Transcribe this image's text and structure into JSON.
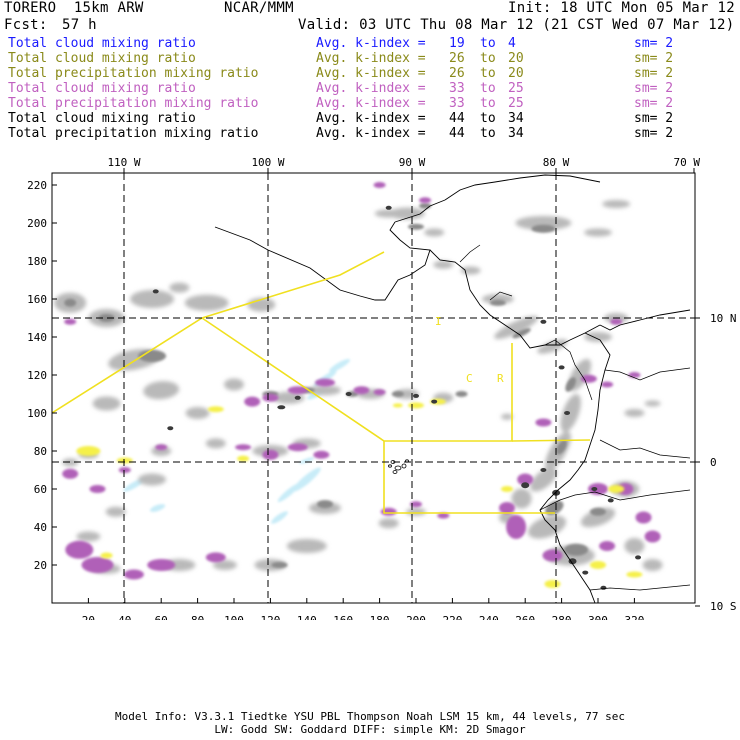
{
  "header": {
    "model": "TORERO  15km ARW",
    "org": "NCAR/MMM",
    "init": "Init: 18 UTC Mon 05 Mar 12",
    "fcst_label": "Fcst:",
    "fcst_value": "57 h",
    "valid": "Valid: 03 UTC Thu 08 Mar 12 (21 CST Wed 07 Mar 12)"
  },
  "legend": [
    {
      "name": "Total cloud mixing ratio",
      "avg": "Avg. k-index =",
      "hi": "19",
      "to": "to",
      "lo": "4",
      "sm": "sm= 2",
      "color": "#1a1aff"
    },
    {
      "name": "Total cloud mixing ratio",
      "avg": "Avg. k-index =",
      "hi": "26",
      "to": "to",
      "lo": "20",
      "sm": "sm= 2",
      "color": "#8a8a1a"
    },
    {
      "name": "Total precipitation mixing ratio",
      "avg": "Avg. k-index =",
      "hi": "26",
      "to": "to",
      "lo": "20",
      "sm": "sm= 2",
      "color": "#8a8a1a"
    },
    {
      "name": "Total cloud mixing ratio",
      "avg": "Avg. k-index =",
      "hi": "33",
      "to": "to",
      "lo": "25",
      "sm": "sm= 2",
      "color": "#c060c0"
    },
    {
      "name": "Total precipitation mixing ratio",
      "avg": "Avg. k-index =",
      "hi": "33",
      "to": "to",
      "lo": "25",
      "sm": "sm= 2",
      "color": "#c060c0"
    },
    {
      "name": "Total cloud mixing ratio",
      "avg": "Avg. k-index =",
      "hi": "44",
      "to": "to",
      "lo": "34",
      "sm": "sm= 2",
      "color": "#000000"
    },
    {
      "name": "Total precipitation mixing ratio",
      "avg": "Avg. k-index =",
      "hi": "44",
      "to": "to",
      "lo": "34",
      "sm": "sm= 2",
      "color": "#000000"
    }
  ],
  "map": {
    "lon_labels": [
      "110 W",
      "100 W",
      "90 W",
      "80 W",
      "70 W"
    ],
    "lat_labels": [
      "10 N",
      "0",
      "10 S"
    ],
    "y_ticks": [
      "20",
      "40",
      "60",
      "80",
      "100",
      "120",
      "140",
      "160",
      "180",
      "200",
      "220"
    ],
    "x_ticks": [
      "20",
      "40",
      "60",
      "80",
      "100",
      "120",
      "140",
      "160",
      "180",
      "200",
      "220",
      "240",
      "260",
      "280",
      "300",
      "320"
    ],
    "region_labels": [
      "I",
      "C",
      "R"
    ],
    "colors": {
      "cloud_light": "#b9b9b9",
      "cloud_dark": "#8a8a8a",
      "cloud_core": "#3a3a3a",
      "precip_purple": "#b060b8",
      "yellow": "#f5f04a",
      "light_blue": "#c8ecf8",
      "domain_line": "#f0e020"
    }
  },
  "footer": {
    "line1": "Model Info: V3.3.1   Tiedtke YSU PBL  Thompson    Noah LSM  15 km,   44 levels,    77 sec",
    "line2": "LW: Godd SW: Goddard DIFF: simple KM: 2D Smagor"
  }
}
